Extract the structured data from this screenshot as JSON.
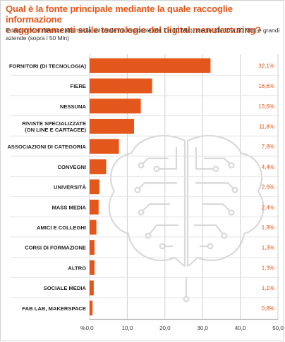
{
  "title": "Qual è la fonte principale mediante la quale raccoglie informazione\ne aggiornamenti sulle tecnologie del digital manufacturing?",
  "subtitle": "Il dato in % si riferisce alla media sul totale fra le piccole (da 1 a 10 Mln), medie (da 10 a 50 Mln) e grandi aziende (sopra i 50 Mln)",
  "colors": {
    "bar": "#e4571c",
    "title": "#e4571c",
    "value": "#e4571c",
    "grid": "#cfcfcf",
    "brain": "#d9d9d9"
  },
  "decoration": {
    "brain_icon": "circuit-brain-icon"
  },
  "chart_data": {
    "type": "bar",
    "orientation": "horizontal",
    "categories": [
      "FORNITORI (DI TECNOLOGIA)",
      "FIERE",
      "NESSUNA",
      "RIVISTE SPECIALIZZATE\n(ON LINE E CARTACEE)",
      "ASSOCIAZIONI DI CATEGORIA",
      "CONVEGNI",
      "UNIVERSITÀ",
      "MASS MEDIA",
      "AMICI E COLLEGHI",
      "CORSI DI FORMAZIONE",
      "ALTRO",
      "SOCIALE MEDIA",
      "FAB LAB, MAKERSPACE"
    ],
    "values": [
      32.1,
      16.6,
      13.6,
      11.8,
      7.8,
      4.4,
      2.6,
      2.4,
      1.8,
      1.3,
      1.3,
      1.1,
      0.8
    ],
    "value_labels": [
      "32,1%",
      "16,6%",
      "13,6%",
      "11,8%",
      "7,8%",
      "4,4%",
      "2,6%",
      "2,4%",
      "1,8%",
      "1,3%",
      "1,3%",
      "1,1%",
      "0,8%"
    ],
    "xlabel": "%",
    "xlim": [
      0,
      50
    ],
    "xticks": [
      "0,0",
      "10,0",
      "20,0",
      "30,0",
      "40,0",
      "50,0"
    ],
    "grid": true
  }
}
